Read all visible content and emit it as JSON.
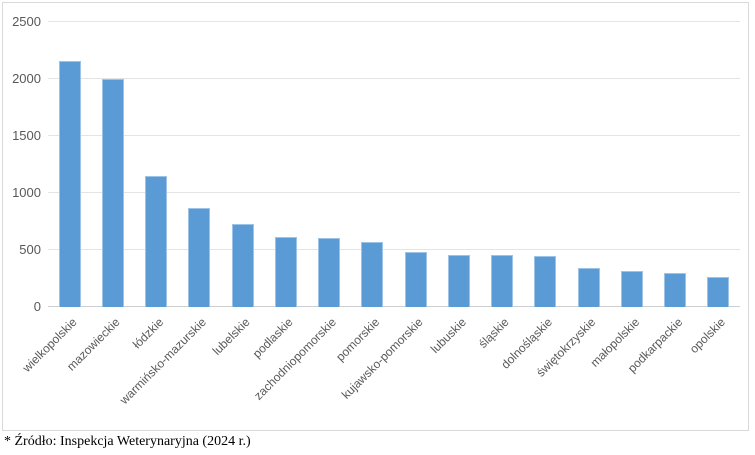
{
  "chart_data": {
    "type": "bar",
    "title": "",
    "xlabel": "",
    "ylabel": "",
    "categories": [
      "wielkopolskie",
      "mazowieckie",
      "łódzkie",
      "warmińsko-mazurskie",
      "lubelskie",
      "podlaskie",
      "zachodniopomorskie",
      "pomorskie",
      "kujawsko-pomorskie",
      "lubuskie",
      "śląskie",
      "dolnośląskie",
      "świętokrzyskie",
      "małopolskie",
      "podkarpackie",
      "opolskie"
    ],
    "values": [
      2160,
      2000,
      1150,
      865,
      725,
      615,
      605,
      570,
      480,
      460,
      455,
      445,
      345,
      320,
      295,
      260
    ],
    "ylim": [
      0,
      2500
    ],
    "yticks": [
      0,
      500,
      1000,
      1500,
      2000,
      2500
    ],
    "grid": true,
    "legend": false,
    "bar_color": "#5B9BD5",
    "label_rotation_deg": 45
  },
  "footnote": "* Źródło: Inspekcja Weterynaryjna (2024 r.)",
  "colors": {
    "bar_fill": "#5B9BD5",
    "bar_edge": "#9DC3E6",
    "gridline": "#E4E4E4",
    "axis_line": "#CFCFCF",
    "axis_label": "#595959",
    "frame_border": "#D9D9D9",
    "footnote_text": "#000000"
  }
}
